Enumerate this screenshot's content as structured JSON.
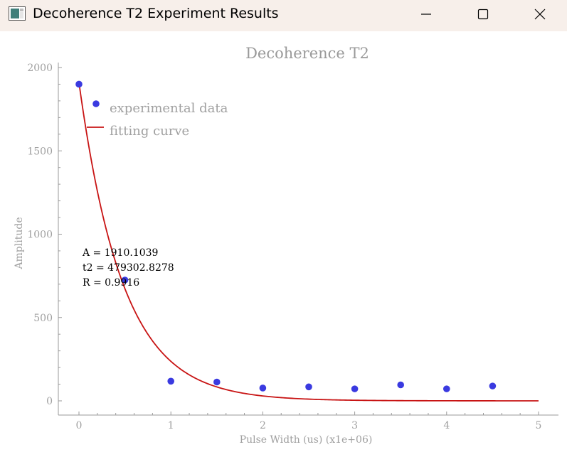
{
  "window": {
    "title": "Decoherence T2 Experiment Results",
    "icon": "chart-app-icon"
  },
  "chart_data": {
    "type": "scatter",
    "title": "Decoherence T2",
    "xlabel": "Pulse Width (us) (x1e+06)",
    "ylabel": "Amplitude",
    "xlim": [
      0,
      5
    ],
    "ylim": [
      0,
      2000
    ],
    "x_ticks": [
      "0",
      "1",
      "2",
      "3",
      "4",
      "5"
    ],
    "y_ticks": [
      "0",
      "500",
      "1000",
      "1500",
      "2000"
    ],
    "grid": false,
    "legend_position": "top-left",
    "series": [
      {
        "name": "experimental data",
        "kind": "scatter",
        "color": "#3a3ae0",
        "x": [
          0,
          0.5,
          1,
          1.5,
          2,
          2.5,
          3,
          3.5,
          4,
          4.5
        ],
        "y": [
          1900,
          725,
          118,
          113,
          77,
          84,
          72,
          96,
          72,
          89
        ]
      },
      {
        "name": "fitting curve",
        "kind": "line",
        "color": "#c81414",
        "function": "A*exp(-x/t2)",
        "params": {
          "A": 1910.1039,
          "t2": 479302.8278
        },
        "x_scale": 1000000,
        "x_range": [
          0,
          5
        ]
      }
    ],
    "annotations": [
      "A = 1910.1039",
      "t2 = 479302.8278",
      "R = 0.9916"
    ]
  }
}
